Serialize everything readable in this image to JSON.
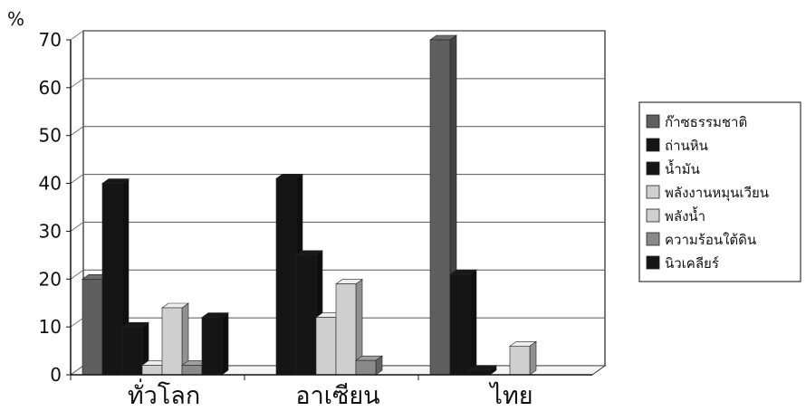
{
  "chart_data": {
    "type": "bar",
    "ylabel": "%",
    "ylim": [
      0,
      70
    ],
    "yticks": [
      0,
      10,
      20,
      30,
      40,
      50,
      60,
      70
    ],
    "grid": true,
    "legend_position": "right",
    "categories": [
      "ทั่วโลก",
      "อาเซียน",
      "ไทย"
    ],
    "series": [
      {
        "name": "ก๊าซธรรมชาติ",
        "values": [
          20,
          0,
          70
        ],
        "color": "#5f5f5f"
      },
      {
        "name": "ถ่านหิน",
        "values": [
          40,
          41,
          21
        ],
        "color": "#151515"
      },
      {
        "name": "น้ำมัน",
        "values": [
          10,
          25,
          1
        ],
        "color": "#151515"
      },
      {
        "name": "พลังงานหมุนเวียน",
        "values": [
          2,
          12,
          0
        ],
        "color": "#cfcfcf"
      },
      {
        "name": "พลังน้ำ",
        "values": [
          14,
          19,
          6
        ],
        "color": "#cfcfcf"
      },
      {
        "name": "ความร้อนใต้ดิน",
        "values": [
          2,
          3,
          0
        ],
        "color": "#8a8a8a"
      },
      {
        "name": "นิวเคลียร์",
        "values": [
          12,
          0,
          0
        ],
        "color": "#151515"
      }
    ]
  }
}
